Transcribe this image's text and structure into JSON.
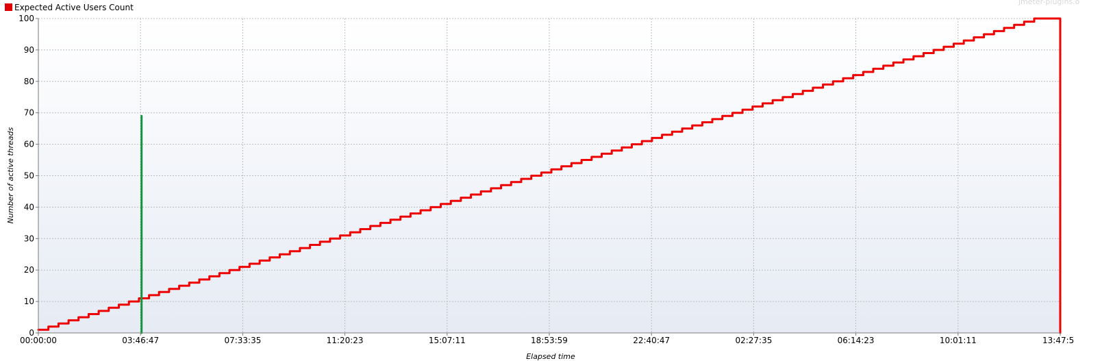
{
  "watermark": "jmeter-plugins.o",
  "legend": {
    "label": "Expected Active Users Count",
    "color": "#e00000"
  },
  "colors": {
    "expected_series": "#ee0000",
    "second_series": "#12953e",
    "plot_bg_top": "#ffffff",
    "plot_bg_bottom": "#e6ebf4"
  },
  "chart_data": {
    "type": "line",
    "title": "",
    "xlabel": "Elapsed time",
    "ylabel": "Number of active threads",
    "xlim_seconds": [
      0,
      49675
    ],
    "ylim": [
      0,
      100
    ],
    "grid": true,
    "legend_position": "top-left",
    "x_tick_labels": [
      "00:00:00",
      "03:46:47",
      "07:33:35",
      "11:20:23",
      "15:07:11",
      "18:53:59",
      "22:40:47",
      "02:27:35",
      "06:14:23",
      "10:01:11",
      "13:47:5"
    ],
    "y_tick_labels": [
      "0",
      "10",
      "20",
      "30",
      "40",
      "50",
      "60",
      "70",
      "80",
      "90",
      "100"
    ],
    "series": [
      {
        "name": "Expected Active Users Count",
        "color": "#ee0000",
        "shape": "staircase",
        "start_time": "00:00:00",
        "end_time": "13:47:5",
        "start_value": 1,
        "end_value": 100,
        "step_size": 1,
        "step_interval_seconds": 489,
        "drop_to": 0
      },
      {
        "color": "#12953e",
        "shape": "vertical-spike",
        "time": "03:46:47",
        "values": [
          0,
          69
        ]
      }
    ]
  }
}
